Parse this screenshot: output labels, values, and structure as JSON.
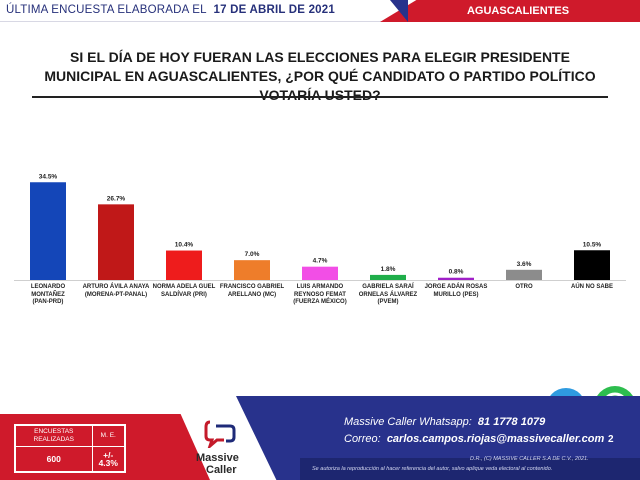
{
  "header": {
    "survey_prefix": "ÚLTIMA ENCUESTA ELABORADA EL",
    "survey_date": "17 DE ABRIL DE 2021",
    "region": "AGUASCALIENTES"
  },
  "question": {
    "text": "SI EL DÍA DE HOY FUERAN LAS ELECCIONES PARA ELEGIR PRESIDENTE MUNICIPAL EN AGUASCALIENTES, ¿POR QUÉ CANDIDATO O PARTIDO POLÍTICO VOTARÍA USTED?"
  },
  "chart_data": {
    "type": "bar",
    "categories": [
      "LEONARDO MONTAÑEZ\n(PAN-PRD)",
      "ARTURO ÁVILA ANAYA\n(MORENA-PT-PANAL)",
      "NORMA ADELA GUEL\nSALDÍVAR (PRI)",
      "FRANCISCO GABRIEL\nARELLANO (MC)",
      "LUIS ARMANDO\nREYNOSO FEMAT\n(FUERZA MÉXICO)",
      "GABRIELA SARAÍ\nORNELAS ÁLVAREZ\n(PVEM)",
      "JORGE ADÁN ROSAS\nMURILLO (PES)",
      "OTRO",
      "AÚN NO SABE"
    ],
    "values": [
      34.5,
      26.7,
      10.4,
      7.0,
      4.7,
      1.8,
      0.8,
      3.6,
      10.5
    ],
    "value_labels": [
      "34.5%",
      "26.7%",
      "10.4%",
      "7.0%",
      "4.7%",
      "1.8%",
      "0.8%",
      "3.6%",
      "10.5%"
    ],
    "colors": [
      "#1446b8",
      "#c01818",
      "#ee1c1c",
      "#ee7d2a",
      "#f24ee6",
      "#1fae4a",
      "#a020c8",
      "#8c8c8c",
      "#000000"
    ],
    "ylim": [
      0,
      36
    ],
    "grid": false
  },
  "footer": {
    "stats_header_1": "ENCUESTAS REALIZADAS",
    "stats_header_2": "M. E.",
    "stats_value_1": "600",
    "stats_value_2": "+/- 4.3%",
    "logo_line1": "Massive",
    "logo_line2": "Caller",
    "whatsapp_label": "Massive Caller Whatsapp:",
    "whatsapp_number": "81 1778 1079",
    "email_label": "Correo:",
    "email": "carlos.campos.riojas@massivecaller.com",
    "copyright": "D.R., (C) MASSIVE CALLER S.A DE C.V., 2021.",
    "disclaimer": "Se autoriza la reproducción al hacer referencia del autor, salvo aplique veda electoral al contenido.",
    "page_number": "2"
  },
  "icons": {
    "telegram": "telegram-icon",
    "whatsapp": "whatsapp-icon",
    "logo": "massive-caller-logo"
  }
}
